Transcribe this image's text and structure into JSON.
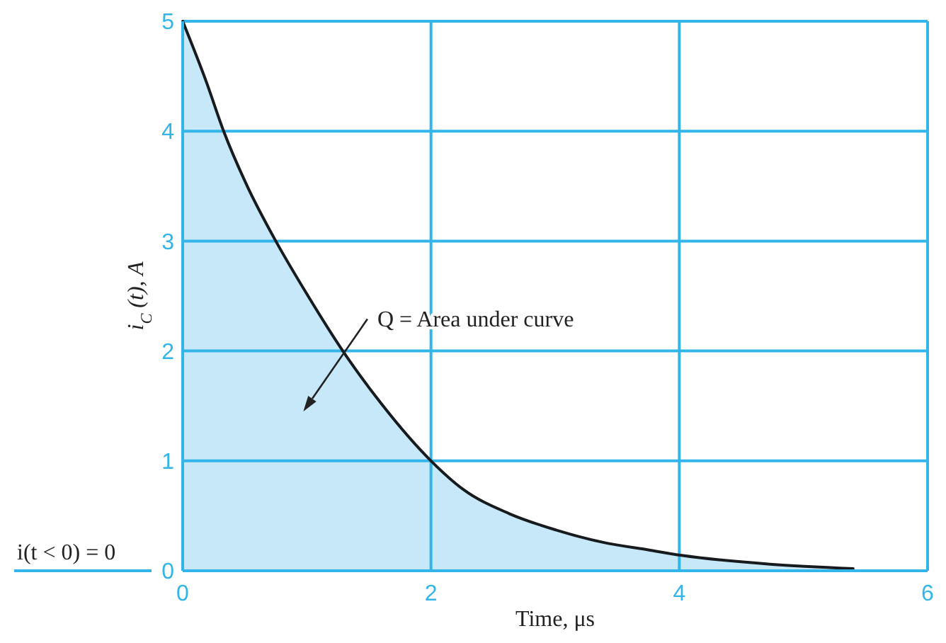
{
  "chart_data": {
    "type": "area",
    "xlabel": "Time, μs",
    "ylabel": "i$_{C}$ (t), A",
    "annotations": [
      "Q = Area under curve",
      "i(t < 0) = 0"
    ],
    "x": [
      0,
      0.19,
      0.33,
      0.52,
      0.75,
      1.01,
      1.29,
      1.6,
      2,
      2.26,
      2.63,
      3.01,
      3.38,
      3.75,
      4.02,
      4.73,
      5.4
    ],
    "series": [
      {
        "color": "#c6e8f8",
        "values": [
          5,
          4.45,
          4,
          3.5,
          3,
          2.5,
          2,
          1.52,
          1,
          0.74,
          0.52,
          0.37,
          0.26,
          0.19,
          0.14,
          0.06,
          0.02
        ]
      }
    ],
    "xlim": [
      0,
      6
    ],
    "ylim": [
      0,
      5
    ],
    "xticks": [
      0,
      2,
      4,
      6
    ],
    "yticks": [
      0,
      1,
      2,
      3,
      4,
      5
    ],
    "grid": true
  }
}
